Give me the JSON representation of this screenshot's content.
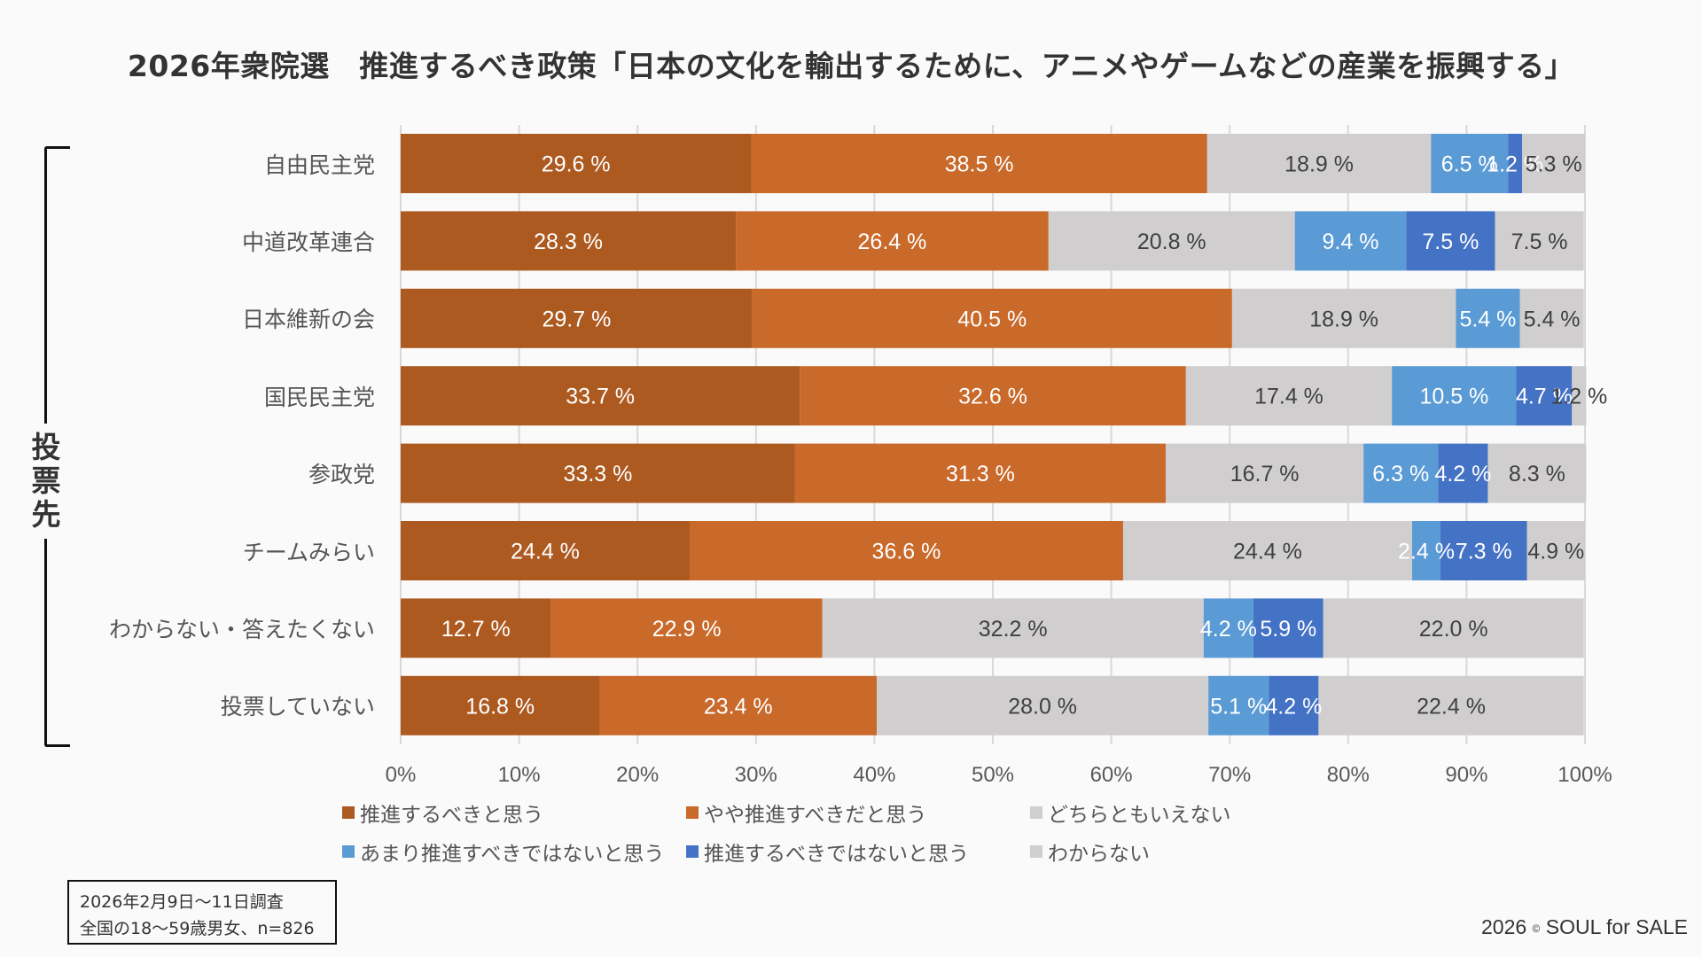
{
  "header": {
    "title": "2026年衆院選　推進するべき政策「日本の文化を輸出するために、アニメやゲームなどの産業を振興する」"
  },
  "axis_group_label": [
    "投",
    "票",
    "先"
  ],
  "survey_note": {
    "line1": "2026年2月9日〜11日調査",
    "line2": "全国の18〜59歳男女、n=826"
  },
  "copyright": {
    "year": "2026",
    "symbol": "©",
    "owner": "SOUL for SALE"
  },
  "chart_data": {
    "type": "bar",
    "orientation": "horizontal",
    "stacked": "100%",
    "title": "2026年衆院選　推進するべき政策「日本の文化を輸出するために、アニメやゲームなどの産業を振興する」",
    "xlabel": "",
    "ylabel": "投票先",
    "xlim": [
      0,
      100
    ],
    "grid": true,
    "legend_position": "bottom",
    "x_ticks": [
      "0%",
      "10%",
      "20%",
      "30%",
      "40%",
      "50%",
      "60%",
      "70%",
      "80%",
      "90%",
      "100%"
    ],
    "categories": [
      "自由民主党",
      "中道改革連合",
      "日本維新の会",
      "国民民主党",
      "参政党",
      "チームみらい",
      "わからない・答えたくない",
      "投票していない"
    ],
    "series": [
      {
        "name": "推進するべきと思う",
        "color": "#ad5a21",
        "label_color": "#ffffff",
        "values": [
          29.6,
          28.3,
          29.7,
          33.7,
          33.3,
          24.4,
          12.7,
          16.8
        ]
      },
      {
        "name": "やや推進すべきだと思う",
        "color": "#c9692a",
        "label_color": "#ffffff",
        "values": [
          38.5,
          26.4,
          40.5,
          32.6,
          31.3,
          36.6,
          22.9,
          23.4
        ]
      },
      {
        "name": "どちらともいえない",
        "color": "#d0cece",
        "label_color": "#404040",
        "values": [
          18.9,
          20.8,
          18.9,
          17.4,
          16.7,
          24.4,
          32.2,
          28.0
        ]
      },
      {
        "name": "あまり推進すべきではないと思う",
        "color": "#5b9bd5",
        "label_color": "#ffffff",
        "values": [
          6.5,
          9.4,
          5.4,
          10.5,
          6.3,
          2.4,
          4.2,
          5.1
        ]
      },
      {
        "name": "推進するべきではないと思う",
        "color": "#4472c4",
        "label_color": "#ffffff",
        "values": [
          1.2,
          7.5,
          0.0,
          4.7,
          4.2,
          7.3,
          5.9,
          4.2
        ]
      },
      {
        "name": "わからない",
        "color": "#d0cece",
        "label_color": "#404040",
        "values": [
          5.3,
          7.5,
          5.4,
          1.2,
          8.3,
          4.9,
          22.0,
          22.4
        ]
      }
    ],
    "value_labels": [
      [
        "29.6 %",
        "38.5 %",
        "18.9 %",
        "6.5 %",
        "1.2 %",
        "5.3 %"
      ],
      [
        "28.3 %",
        "26.4 %",
        "20.8 %",
        "9.4 %",
        "7.5 %",
        "7.5 %"
      ],
      [
        "29.7 %",
        "40.5 %",
        "18.9 %",
        "5.4 %",
        "",
        "5.4 %"
      ],
      [
        "33.7 %",
        "32.6 %",
        "17.4 %",
        "10.5 %",
        "4.7 %",
        "1.2 %"
      ],
      [
        "33.3 %",
        "31.3 %",
        "16.7 %",
        "6.3 %",
        "4.2 %",
        "8.3 %"
      ],
      [
        "24.4 %",
        "36.6 %",
        "24.4 %",
        "2.4 %",
        "7.3 %",
        "4.9 %"
      ],
      [
        "12.7 %",
        "22.9 %",
        "32.2 %",
        "4.2 %",
        "5.9 %",
        "22.0 %"
      ],
      [
        "16.8 %",
        "23.4 %",
        "28.0 %",
        "5.1 %",
        "4.2 %",
        "22.4 %"
      ]
    ]
  }
}
